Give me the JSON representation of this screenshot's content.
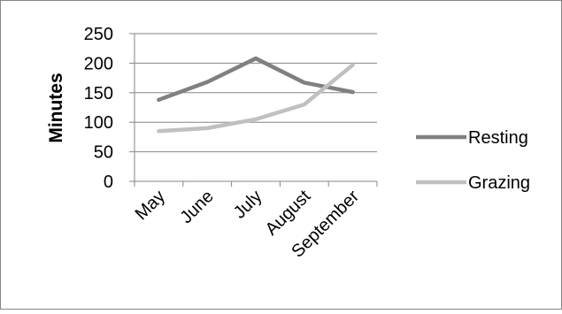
{
  "chart_data": {
    "type": "line",
    "title": "",
    "xlabel": "",
    "ylabel": "Minutes",
    "categories": [
      "May",
      "June",
      "July",
      "August",
      "September"
    ],
    "ylim": [
      0,
      250
    ],
    "yticks": [
      0,
      50,
      100,
      150,
      200,
      250
    ],
    "grid": "horizontal",
    "legend": "right",
    "series": [
      {
        "name": "Resting",
        "color": "#808080",
        "values": [
          138,
          168,
          208,
          167,
          151
        ]
      },
      {
        "name": "Grazing",
        "color": "#c0c0c0",
        "values": [
          85,
          90,
          105,
          130,
          197
        ]
      }
    ]
  }
}
